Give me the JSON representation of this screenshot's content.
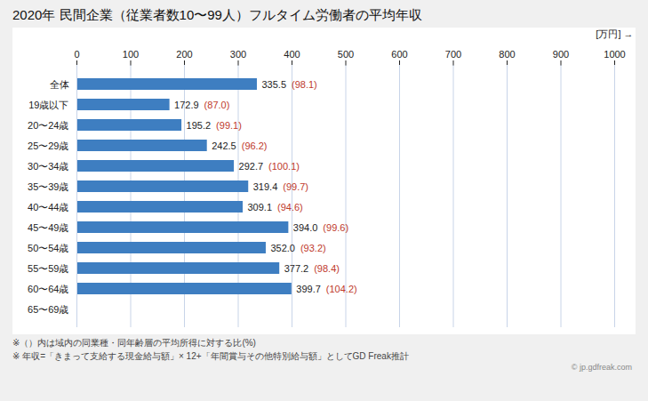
{
  "chart_data": {
    "type": "bar",
    "orientation": "horizontal",
    "title": "2020年 民間企業（従業者数10〜99人）フルタイム労働者の平均年収",
    "unit_label": "[万円]",
    "categories": [
      "全体",
      "19歳以下",
      "20〜24歳",
      "25〜29歳",
      "30〜34歳",
      "35〜39歳",
      "40〜44歳",
      "45〜49歳",
      "50〜54歳",
      "55〜59歳",
      "60〜64歳",
      "65〜69歳"
    ],
    "values": [
      335.5,
      172.9,
      195.2,
      242.5,
      292.7,
      319.4,
      309.1,
      394.0,
      352.0,
      377.2,
      399.7,
      0
    ],
    "value_labels": [
      "335.5",
      "172.9",
      "195.2",
      "242.5",
      "292.7",
      "319.4",
      "309.1",
      "394.0",
      "352.0",
      "377.2",
      "399.7",
      null
    ],
    "ratio_labels": [
      "(98.1)",
      "(87.0)",
      "(99.1)",
      "(96.2)",
      "(100.1)",
      "(99.7)",
      "(94.6)",
      "(99.6)",
      "(93.2)",
      "(98.4)",
      "(104.2)",
      null
    ],
    "ratio_color": "#c0392b",
    "color": "#3e7ec1",
    "data_labels": true,
    "xlim": [
      0,
      1000
    ],
    "xticks": [
      0,
      100,
      200,
      300,
      400,
      500,
      600,
      700,
      800,
      900,
      1000
    ],
    "grid": true,
    "footnotes": [
      "※（）内は域内の同業種・同年齢層の平均所得に対する比(%)",
      "※ 年収=「きまって支給する現金給与額」× 12+「年間賞与その他特別給与額」としてGD Freak推計"
    ],
    "watermark": "© jp.gdfreak.com"
  }
}
